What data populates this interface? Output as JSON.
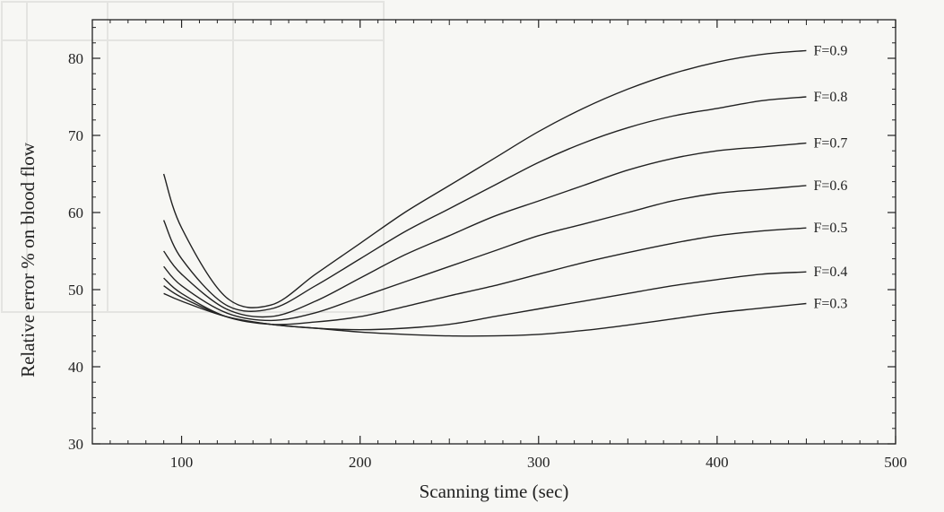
{
  "chart_data": {
    "type": "line",
    "title": "",
    "xlabel": "Scanning time (sec)",
    "ylabel": "Relative error % on blood flow",
    "xlim": [
      50,
      500
    ],
    "ylim": [
      30,
      85
    ],
    "xticks": [
      100,
      200,
      300,
      400,
      500
    ],
    "yticks": [
      30,
      40,
      50,
      60,
      70,
      80
    ],
    "grid": false,
    "legend": "none",
    "line_color": "#222222",
    "series": [
      {
        "name": "F=0.9",
        "x": [
          90,
          100,
          125,
          150,
          175,
          200,
          225,
          250,
          275,
          300,
          325,
          350,
          375,
          400,
          425,
          450
        ],
        "y": [
          65,
          58,
          49,
          48,
          52,
          56,
          60,
          63.5,
          67,
          70.5,
          73.5,
          76,
          78,
          79.5,
          80.5,
          81
        ]
      },
      {
        "name": "F=0.8",
        "x": [
          90,
          100,
          125,
          150,
          175,
          200,
          225,
          250,
          275,
          300,
          325,
          350,
          375,
          400,
          425,
          450
        ],
        "y": [
          59,
          54,
          48,
          47.5,
          50.5,
          54,
          57.5,
          60.5,
          63.5,
          66.5,
          69,
          71,
          72.5,
          73.5,
          74.5,
          75
        ]
      },
      {
        "name": "F=0.7",
        "x": [
          90,
          100,
          125,
          150,
          175,
          200,
          225,
          250,
          275,
          300,
          325,
          350,
          375,
          400,
          425,
          450
        ],
        "y": [
          55,
          52,
          47.5,
          46.5,
          48.5,
          51.5,
          54.5,
          57,
          59.5,
          61.5,
          63.5,
          65.5,
          67,
          68,
          68.5,
          69
        ]
      },
      {
        "name": "F=0.6",
        "x": [
          90,
          100,
          125,
          150,
          175,
          200,
          225,
          250,
          275,
          300,
          325,
          350,
          375,
          400,
          425,
          450
        ],
        "y": [
          53,
          50.5,
          47,
          46,
          47,
          49,
          51,
          53,
          55,
          57,
          58.5,
          60,
          61.5,
          62.5,
          63,
          63.5
        ]
      },
      {
        "name": "F=0.5",
        "x": [
          90,
          100,
          125,
          150,
          175,
          200,
          225,
          250,
          275,
          300,
          325,
          350,
          375,
          400,
          425,
          450
        ],
        "y": [
          51.5,
          49.5,
          46.5,
          45.5,
          45.8,
          46.5,
          47.8,
          49.2,
          50.5,
          52,
          53.5,
          54.8,
          56,
          57,
          57.6,
          58
        ]
      },
      {
        "name": "F=0.4",
        "x": [
          90,
          100,
          125,
          150,
          175,
          200,
          225,
          250,
          275,
          300,
          325,
          350,
          375,
          400,
          425,
          450
        ],
        "y": [
          50.5,
          49,
          46.5,
          45.5,
          45,
          44.8,
          45,
          45.5,
          46.5,
          47.5,
          48.5,
          49.5,
          50.5,
          51.3,
          52,
          52.3
        ]
      },
      {
        "name": "F=0.3",
        "x": [
          90,
          100,
          125,
          150,
          175,
          200,
          225,
          250,
          275,
          300,
          325,
          350,
          375,
          400,
          425,
          450
        ],
        "y": [
          49.5,
          48.5,
          46.5,
          45.5,
          45,
          44.5,
          44.2,
          44,
          44,
          44.2,
          44.7,
          45.4,
          46.2,
          47,
          47.6,
          48.2
        ]
      }
    ]
  }
}
